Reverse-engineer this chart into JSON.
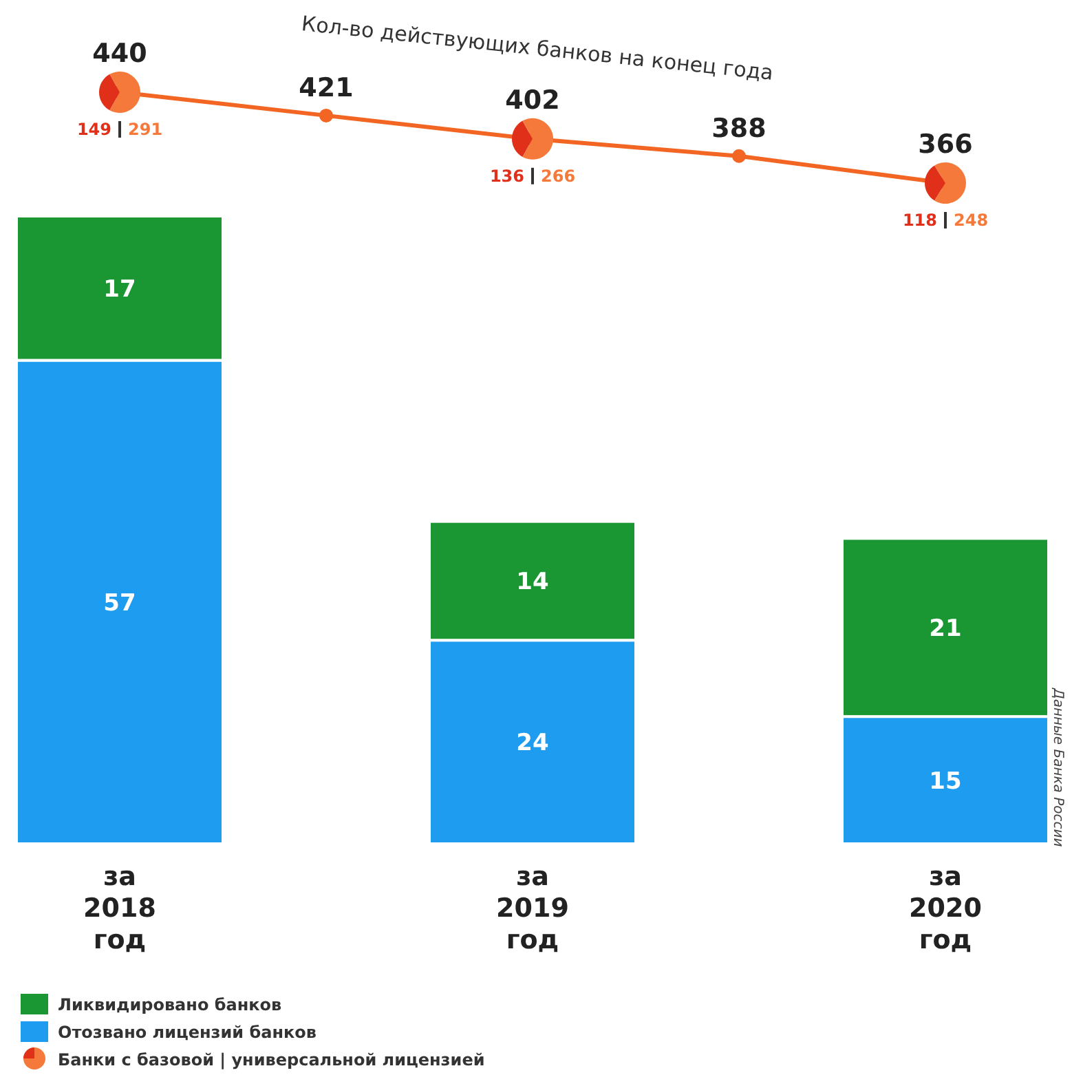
{
  "chart_data": [
    {
      "type": "line",
      "title": "Кол-во действующих банков на конец года",
      "categories": [
        null,
        null,
        null,
        null,
        null
      ],
      "series": [
        {
          "color": "#f26522",
          "values": [
            440,
            421,
            402,
            388,
            366
          ]
        }
      ],
      "data_labels": true,
      "marker": "circle",
      "annotations": [
        "Банки с базовой | универсальной лицензией"
      ]
    },
    {
      "type": "pie",
      "categories": [
        null,
        null
      ],
      "values": [
        149,
        291
      ],
      "colors": [
        "#e0301a",
        "#f5793a"
      ],
      "data_labels": true
    },
    {
      "type": "pie",
      "categories": [
        null,
        null
      ],
      "values": [
        136,
        266
      ],
      "colors": [
        "#e0301a",
        "#f5793a"
      ],
      "data_labels": true
    },
    {
      "type": "pie",
      "categories": [
        null,
        null
      ],
      "values": [
        118,
        248
      ],
      "colors": [
        "#e0301a",
        "#f5793a"
      ],
      "data_labels": true
    },
    {
      "type": "bar",
      "stacked": true,
      "categories": [
        "за 2018 год",
        "за 2019 год",
        "за 2020 год"
      ],
      "series": [
        {
          "name": "Отозвано лицензий банков",
          "color": "#1e9cf0",
          "values": [
            57,
            24,
            15
          ]
        },
        {
          "name": "Ликвидировано банков",
          "color": "#1a9632",
          "values": [
            17,
            14,
            21
          ]
        }
      ],
      "data_labels": true,
      "legend": "bottom left",
      "annotations": [
        "Данные Банка России"
      ]
    }
  ]
}
